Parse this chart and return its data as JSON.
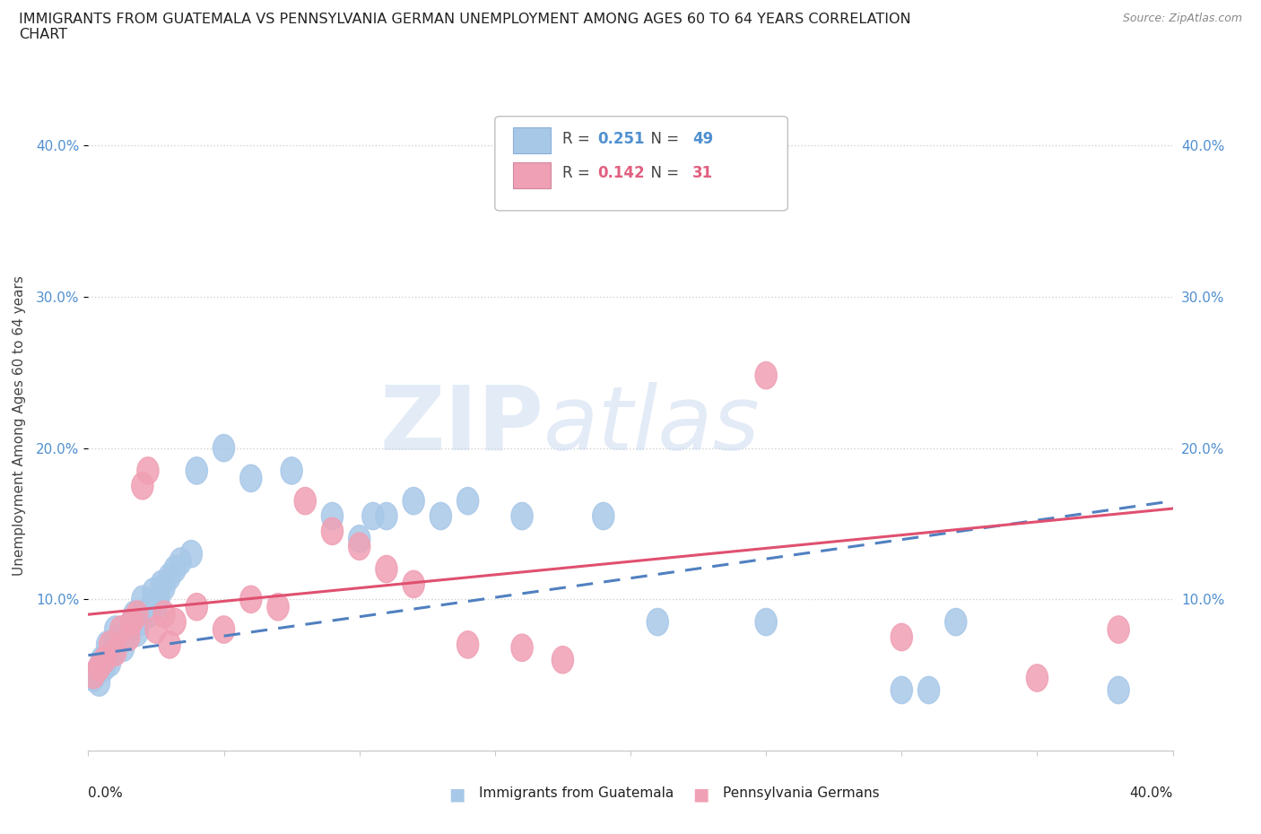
{
  "title": "IMMIGRANTS FROM GUATEMALA VS PENNSYLVANIA GERMAN UNEMPLOYMENT AMONG AGES 60 TO 64 YEARS CORRELATION\nCHART",
  "source": "Source: ZipAtlas.com",
  "ylabel": "Unemployment Among Ages 60 to 64 years",
  "xlim": [
    0.0,
    0.4
  ],
  "ylim": [
    0.0,
    0.43
  ],
  "legend_blue_r": "0.251",
  "legend_blue_n": "49",
  "legend_pink_r": "0.142",
  "legend_pink_n": "31",
  "blue_color": "#a8c8e8",
  "pink_color": "#f0a0b4",
  "blue_line_color": "#5080c0",
  "pink_line_color": "#e05070",
  "watermark_zip": "ZIP",
  "watermark_atlas": "atlas",
  "blue_scatter_x": [
    0.002,
    0.003,
    0.004,
    0.005,
    0.006,
    0.007,
    0.008,
    0.009,
    0.01,
    0.01,
    0.012,
    0.013,
    0.014,
    0.015,
    0.016,
    0.017,
    0.018,
    0.019,
    0.02,
    0.022,
    0.023,
    0.024,
    0.025,
    0.026,
    0.027,
    0.028,
    0.03,
    0.032,
    0.034,
    0.038,
    0.04,
    0.05,
    0.06,
    0.075,
    0.09,
    0.1,
    0.105,
    0.11,
    0.12,
    0.13,
    0.14,
    0.16,
    0.19,
    0.21,
    0.25,
    0.3,
    0.31,
    0.32,
    0.38
  ],
  "blue_scatter_y": [
    0.048,
    0.052,
    0.045,
    0.06,
    0.055,
    0.07,
    0.058,
    0.065,
    0.072,
    0.08,
    0.075,
    0.068,
    0.075,
    0.08,
    0.085,
    0.09,
    0.078,
    0.085,
    0.1,
    0.09,
    0.095,
    0.105,
    0.095,
    0.1,
    0.11,
    0.108,
    0.115,
    0.12,
    0.125,
    0.13,
    0.185,
    0.2,
    0.18,
    0.185,
    0.155,
    0.14,
    0.155,
    0.155,
    0.165,
    0.155,
    0.165,
    0.155,
    0.155,
    0.085,
    0.085,
    0.04,
    0.04,
    0.085,
    0.04
  ],
  "pink_scatter_x": [
    0.002,
    0.004,
    0.006,
    0.008,
    0.01,
    0.012,
    0.015,
    0.016,
    0.018,
    0.02,
    0.022,
    0.025,
    0.028,
    0.03,
    0.032,
    0.04,
    0.05,
    0.06,
    0.07,
    0.08,
    0.09,
    0.1,
    0.11,
    0.12,
    0.14,
    0.16,
    0.175,
    0.25,
    0.3,
    0.35,
    0.38
  ],
  "pink_scatter_y": [
    0.05,
    0.055,
    0.06,
    0.07,
    0.065,
    0.08,
    0.075,
    0.085,
    0.09,
    0.175,
    0.185,
    0.08,
    0.09,
    0.07,
    0.085,
    0.095,
    0.08,
    0.1,
    0.095,
    0.165,
    0.145,
    0.135,
    0.12,
    0.11,
    0.07,
    0.068,
    0.06,
    0.248,
    0.075,
    0.048,
    0.08
  ],
  "blue_trend_x": [
    0.0,
    0.4
  ],
  "blue_trend_y": [
    0.063,
    0.165
  ],
  "pink_trend_x": [
    0.0,
    0.4
  ],
  "pink_trend_y": [
    0.09,
    0.16
  ],
  "ytick_positions": [
    0.1,
    0.2,
    0.3,
    0.4
  ],
  "ytick_labels": [
    "10.0%",
    "20.0%",
    "30.0%",
    "40.0%"
  ],
  "xtick_positions": [
    0.05,
    0.1,
    0.15,
    0.2,
    0.25,
    0.3,
    0.35
  ]
}
